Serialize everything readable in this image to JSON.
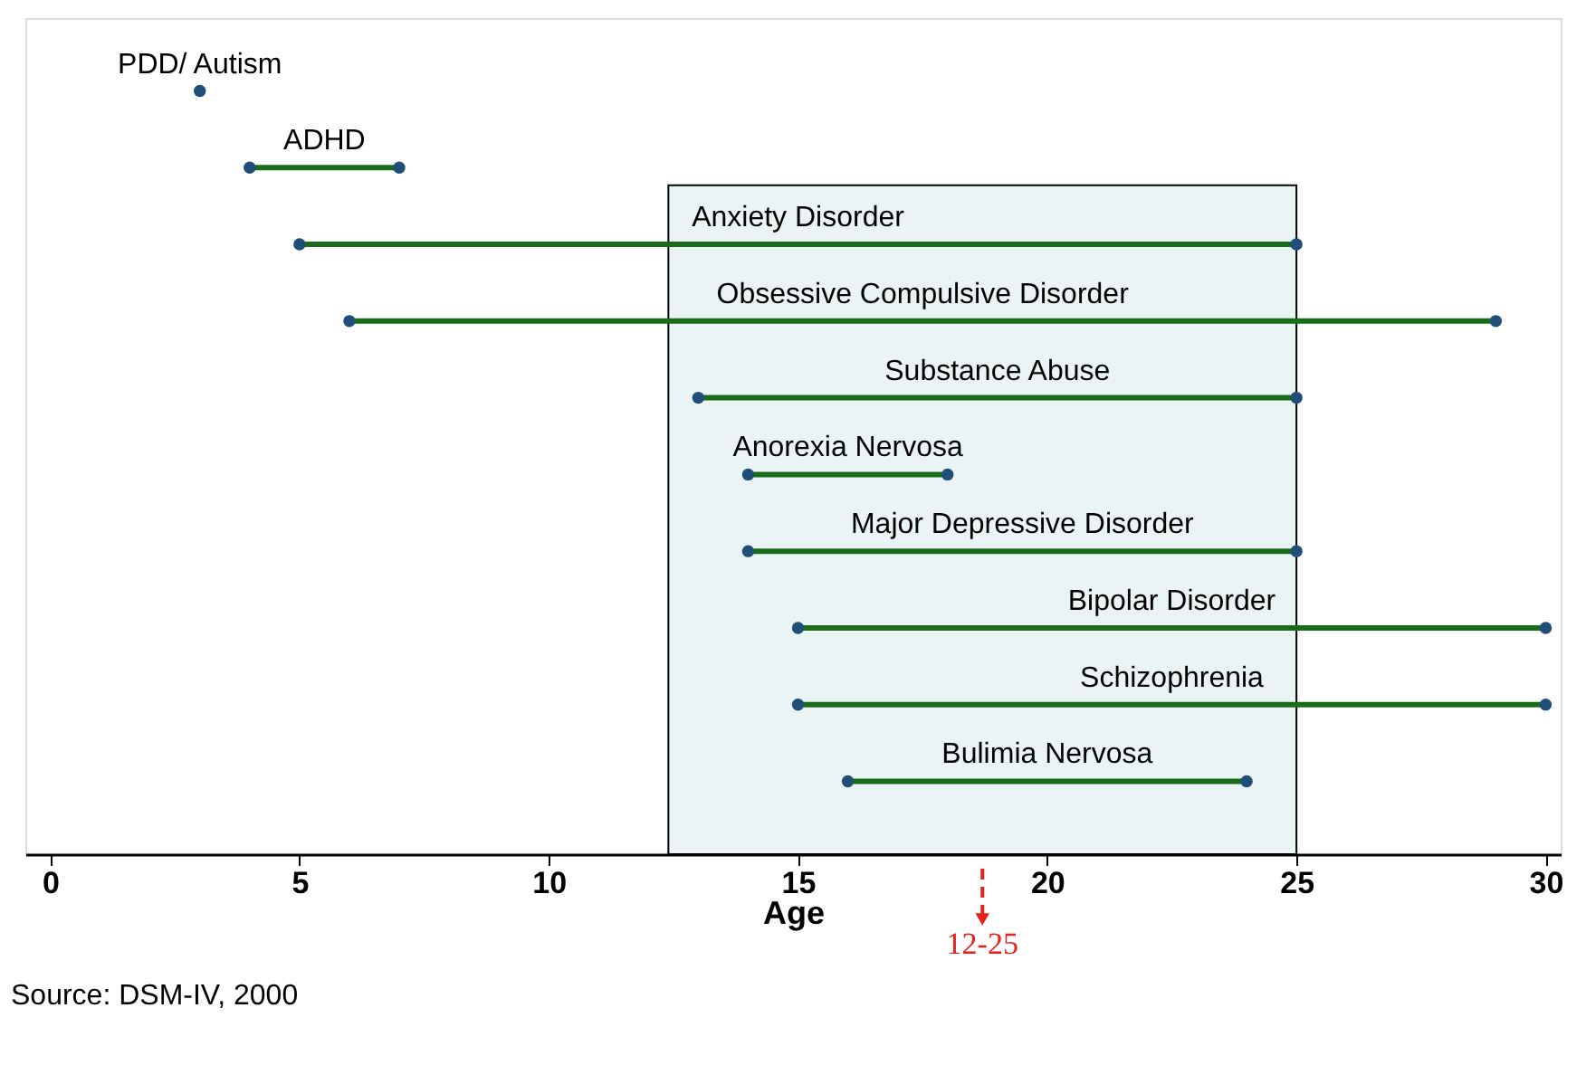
{
  "chart_data": {
    "type": "bar",
    "orientation": "horizontal",
    "marker": "circle",
    "grid": false,
    "tick_labels": "x",
    "xlabel": "Age",
    "categories": [
      "PDD/ Autism",
      "ADHD",
      "Anxiety Disorder",
      "Obsessive Compulsive Disorder",
      "Substance Abuse",
      "Anorexia Nervosa",
      "Major Depressive Disorder",
      "Bipolar Disorder",
      "Schizophrenia",
      "Bulimia Nervosa"
    ],
    "series": [
      {
        "color": "#1a6b1a",
        "base": [
          null,
          4,
          5,
          6,
          13,
          14,
          14,
          15,
          15,
          16
        ],
        "values": [
          null,
          3,
          20,
          23,
          12,
          4,
          11,
          15,
          15,
          8
        ]
      },
      {
        "type": "scatter",
        "color": "#1f4e79",
        "values": [
          3,
          4,
          5,
          6,
          13,
          14,
          14,
          15,
          15,
          16
        ]
      },
      {
        "type": "scatter",
        "color": "#1f4e79",
        "values": [
          null,
          7,
          25,
          29,
          25,
          18,
          25,
          30,
          30,
          24
        ]
      }
    ],
    "xlim": [
      -0.5,
      30.3
    ],
    "xticks": [
      0,
      5,
      10,
      15,
      20,
      25,
      30
    ],
    "bands": [
      {
        "axis": "x",
        "from": 12.4,
        "to": 25,
        "color": "#eaf4f4",
        "label": "12-25"
      }
    ],
    "annotations": [
      "Source: DSM-IV, 2000"
    ]
  }
}
